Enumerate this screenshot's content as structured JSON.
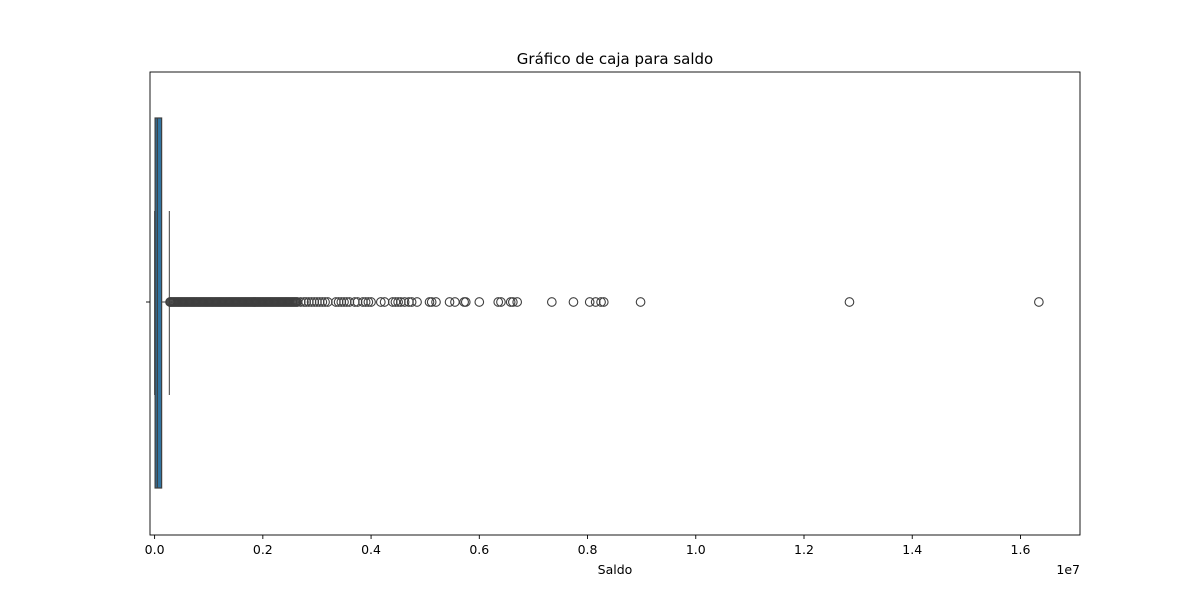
{
  "chart_data": {
    "type": "box",
    "title": "Gráfico de caja para saldo",
    "xlabel": "Saldo",
    "ylabel": "",
    "x_offset_label": "1e7",
    "xlim": [
      -85000,
      17100000
    ],
    "xticks": [
      0,
      2000000,
      4000000,
      6000000,
      8000000,
      10000000,
      12000000,
      14000000,
      16000000
    ],
    "xtick_labels": [
      "0.0",
      "0.2",
      "0.4",
      "0.6",
      "0.8",
      "1.0",
      "1.2",
      "1.4",
      "1.6"
    ],
    "box": {
      "whisker_low": 0,
      "q1": 9000,
      "median": 50000,
      "q3": 130000,
      "whisker_high": 272000,
      "fill_color": "#3274a1",
      "edge_color": "#3f3f3f"
    },
    "outliers": [
      285000,
      300000,
      320000,
      340000,
      360000,
      380000,
      400000,
      420000,
      440000,
      460000,
      480000,
      500000,
      520000,
      540000,
      560000,
      580000,
      600000,
      620000,
      640000,
      660000,
      680000,
      700000,
      720000,
      740000,
      760000,
      780000,
      800000,
      820000,
      840000,
      860000,
      880000,
      900000,
      920000,
      940000,
      960000,
      980000,
      1000000,
      1020000,
      1040000,
      1060000,
      1080000,
      1100000,
      1120000,
      1140000,
      1160000,
      1180000,
      1200000,
      1220000,
      1240000,
      1260000,
      1280000,
      1300000,
      1320000,
      1340000,
      1360000,
      1380000,
      1400000,
      1420000,
      1440000,
      1460000,
      1480000,
      1500000,
      1520000,
      1540000,
      1560000,
      1580000,
      1600000,
      1620000,
      1640000,
      1660000,
      1680000,
      1700000,
      1720000,
      1740000,
      1760000,
      1780000,
      1800000,
      1820000,
      1840000,
      1860000,
      1880000,
      1900000,
      1920000,
      1940000,
      1960000,
      1980000,
      2000000,
      2020000,
      2040000,
      2060000,
      2080000,
      2100000,
      2120000,
      2140000,
      2160000,
      2180000,
      2200000,
      2220000,
      2240000,
      2260000,
      2280000,
      2300000,
      2320000,
      2340000,
      2360000,
      2380000,
      2400000,
      2420000,
      2440000,
      2460000,
      2480000,
      2500000,
      2520000,
      2540000,
      2560000,
      2580000,
      2600000,
      2620000,
      2640000,
      2700000,
      2760000,
      2800000,
      2850000,
      2900000,
      2950000,
      3000000,
      3050000,
      3100000,
      3150000,
      3200000,
      3350000,
      3400000,
      3450000,
      3500000,
      3550000,
      3600000,
      3700000,
      3750000,
      3850000,
      3900000,
      3950000,
      4000000,
      4180000,
      4250000,
      4400000,
      4450000,
      4500000,
      4550000,
      4620000,
      4700000,
      4750000,
      4850000,
      5080000,
      5120000,
      5200000,
      5450000,
      5550000,
      5720000,
      5750000,
      6000000,
      6350000,
      6400000,
      6580000,
      6620000,
      6700000,
      7340000,
      7740000,
      8040000,
      8150000,
      8250000,
      8300000,
      8980000,
      12840000,
      16340000
    ],
    "grid": false,
    "legend": "none"
  }
}
